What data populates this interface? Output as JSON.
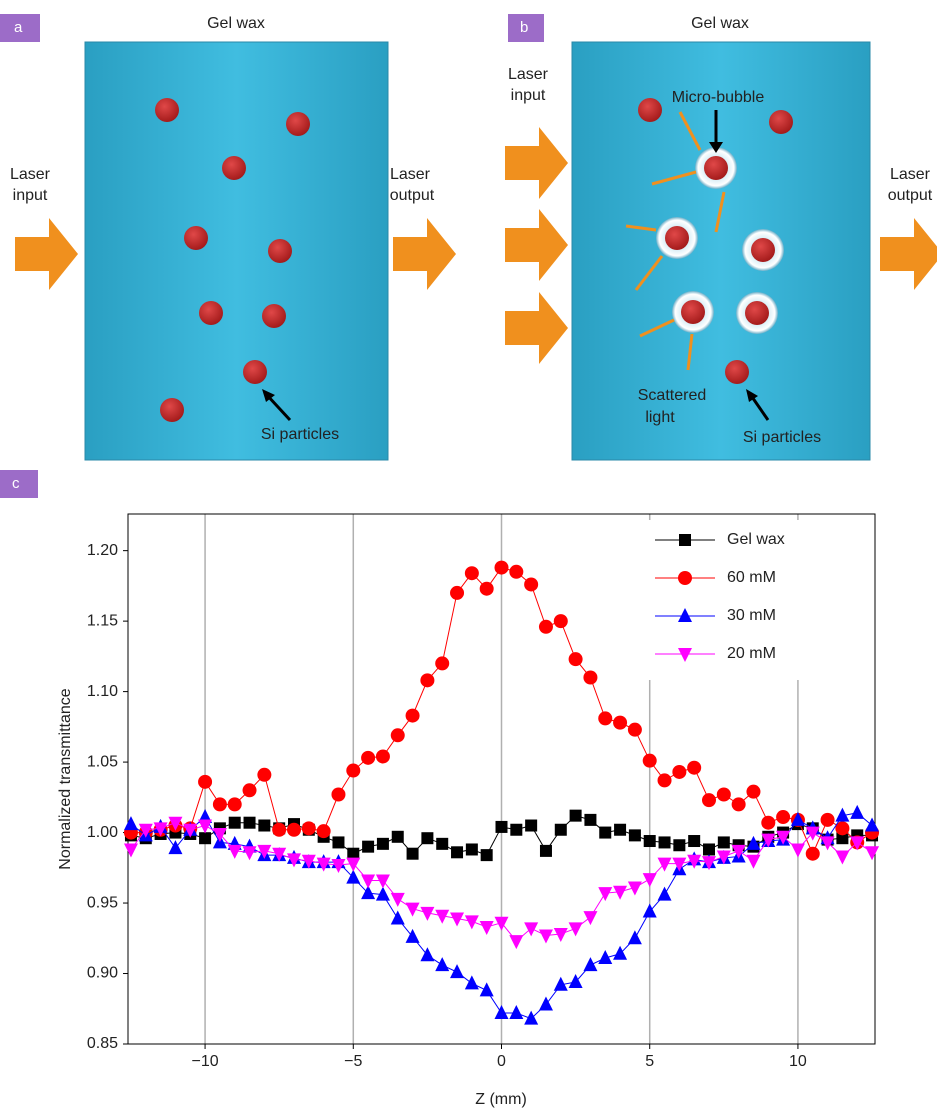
{
  "diagrams": {
    "a": {
      "label": "a",
      "title": "Gel wax",
      "laser_input": [
        "Laser",
        "input"
      ],
      "laser_output": [
        "Laser",
        "output"
      ],
      "particles": "Si particles"
    },
    "b": {
      "label": "b",
      "title": "Gel wax",
      "laser_input": [
        "Laser",
        "input"
      ],
      "laser_output": [
        "Laser",
        "output"
      ],
      "bubble": "Micro-bubble",
      "scattered": [
        "Scattered",
        "light"
      ],
      "particles": "Si particles"
    }
  },
  "chart_data": {
    "type": "line",
    "panel_label": "c",
    "xlabel": "Z (mm)",
    "ylabel": "Normalized transmittance",
    "x": [
      -12.5,
      -12,
      -11.5,
      -11,
      -10.5,
      -10,
      -9.5,
      -9,
      -8.5,
      -8,
      -7.5,
      -7,
      -6.5,
      -6,
      -5.5,
      -5,
      -4.5,
      -4,
      -3.5,
      -3,
      -2.5,
      -2,
      -1.5,
      -1,
      -0.5,
      0,
      0.5,
      1,
      1.5,
      2,
      2.5,
      3,
      3.5,
      4,
      4.5,
      5,
      5.5,
      6,
      6.5,
      7,
      7.5,
      8,
      8.5,
      9,
      9.5,
      10,
      10.5,
      11,
      11.5,
      12,
      12.5
    ],
    "series": [
      {
        "name": "Gel wax",
        "color": "#000000",
        "marker": "square",
        "values": [
          0.998,
          0.996,
          0.999,
          1.0,
          0.999,
          0.996,
          1.003,
          1.007,
          1.007,
          1.005,
          1.003,
          1.006,
          1.002,
          0.997,
          0.993,
          0.985,
          0.99,
          0.992,
          0.997,
          0.985,
          0.996,
          0.992,
          0.986,
          0.988,
          0.984,
          1.004,
          1.002,
          1.005,
          0.987,
          1.002,
          1.012,
          1.009,
          1.0,
          1.002,
          0.998,
          0.994,
          0.993,
          0.991,
          0.994,
          0.988,
          0.993,
          0.991,
          0.99,
          0.997,
          1.0,
          1.006,
          1.003,
          0.995,
          0.996,
          0.998,
          0.998
        ]
      },
      {
        "name": "60 mM",
        "color": "#ff0000",
        "marker": "circle",
        "values": [
          1.0,
          1.0,
          1.002,
          1.005,
          1.003,
          1.036,
          1.02,
          1.02,
          1.03,
          1.041,
          1.002,
          1.002,
          1.003,
          1.001,
          1.027,
          1.044,
          1.053,
          1.054,
          1.069,
          1.083,
          1.108,
          1.12,
          1.17,
          1.184,
          1.173,
          1.188,
          1.185,
          1.176,
          1.146,
          1.15,
          1.123,
          1.11,
          1.081,
          1.078,
          1.073,
          1.051,
          1.037,
          1.043,
          1.046,
          1.023,
          1.027,
          1.02,
          1.029,
          1.007,
          1.011,
          1.009,
          0.985,
          1.009,
          1.003,
          0.993,
          1.0
        ]
      },
      {
        "name": "30 mM",
        "color": "#0000ff",
        "marker": "triangle-up",
        "values": [
          1.006,
          0.998,
          1.004,
          0.989,
          1.002,
          1.011,
          0.993,
          0.992,
          0.99,
          0.984,
          0.984,
          0.982,
          0.979,
          0.979,
          0.979,
          0.968,
          0.957,
          0.956,
          0.939,
          0.926,
          0.913,
          0.906,
          0.901,
          0.893,
          0.888,
          0.872,
          0.872,
          0.868,
          0.878,
          0.892,
          0.894,
          0.906,
          0.911,
          0.914,
          0.925,
          0.944,
          0.956,
          0.974,
          0.981,
          0.979,
          0.982,
          0.983,
          0.992,
          0.994,
          0.995,
          1.009,
          1.003,
          0.996,
          1.012,
          1.014,
          1.005
        ]
      },
      {
        "name": "20 mM",
        "color": "#ff00ff",
        "marker": "triangle-down",
        "values": [
          0.988,
          1.002,
          1.003,
          1.007,
          1.002,
          1.005,
          0.999,
          0.987,
          0.986,
          0.987,
          0.985,
          0.981,
          0.98,
          0.978,
          0.977,
          0.978,
          0.966,
          0.966,
          0.953,
          0.946,
          0.943,
          0.941,
          0.939,
          0.937,
          0.933,
          0.936,
          0.923,
          0.932,
          0.927,
          0.928,
          0.932,
          0.94,
          0.957,
          0.958,
          0.961,
          0.967,
          0.978,
          0.978,
          0.98,
          0.979,
          0.983,
          0.987,
          0.98,
          0.995,
          0.997,
          0.988,
          1.0,
          0.993,
          0.983,
          0.993,
          0.986
        ]
      }
    ],
    "xlim": [
      -12.6,
      12.6
    ],
    "ylim": [
      0.85,
      1.226
    ],
    "xticks": [
      {
        "value": -10,
        "label": "−10"
      },
      {
        "value": -5,
        "label": "−5"
      },
      0,
      5,
      10
    ],
    "yticks": [
      0.85,
      {
        "value": 0.9,
        "label": "0.90"
      },
      0.95,
      {
        "value": 1,
        "label": "1.00"
      },
      1.05,
      {
        "value": 1.1,
        "label": "1.10"
      },
      1.15,
      {
        "value": 1.2,
        "label": "1.20"
      }
    ],
    "grid": "x",
    "legend": "upper right"
  }
}
